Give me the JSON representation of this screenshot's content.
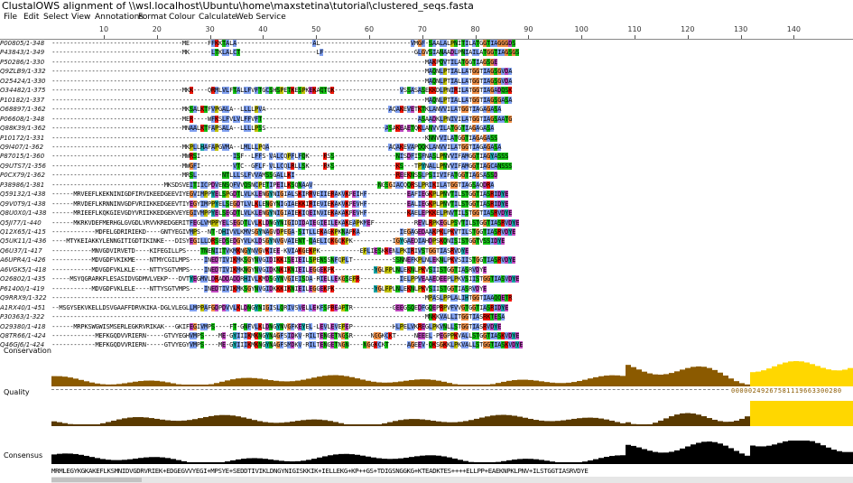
{
  "window_title": "ClustalOWS alignment of \\\\wsl.localhost\\Ubuntu\\home\\maxstetina\\tutorial\\clustered_seqs.fasta",
  "menu": [
    "File",
    "Edit",
    "Select",
    "View",
    "Annotations",
    "Format",
    "Colour",
    "Calculate",
    "Web Service"
  ],
  "ruler": [
    "10",
    "20",
    "30",
    "40",
    "50",
    "60",
    "70",
    "80",
    "90",
    "100",
    "110",
    "120",
    "130",
    "140"
  ],
  "rows": [
    {
      "name": "P00805/1-348",
      "seq": "------------------------------------ME-----FFKKTALA---------------------AL-------------------------VMGF-SAALALPNITILATGGTIAGGGDS"
    },
    {
      "name": "P43843/1-349",
      "seq": "------------------------------------MK------LTKLALCT---------------------LF-------------------------GLGVSIANAADLPNIAILATGGTIAGSGS"
    },
    {
      "name": "P50286/1-330",
      "seq": "-------------------------------------------------------------------------------------------------------MAKPQVTILATGGTIAGSGE"
    },
    {
      "name": "Q9ZLB9/1-332",
      "seq": "-------------------------------------------------------------------------------------------------------MAQNLPTIALLATGGTIAGSGVDA"
    },
    {
      "name": "O25424/1-330",
      "seq": "-------------------------------------------------------------------------------------------------------MAQNLPTIALLATGGTIAGSGVDA"
    },
    {
      "name": "O34482/1-375",
      "seq": "------------------------------------MKK----QRMLVLFTALLFVFTGCSHSPETKESPKEKAQTQK------------------VSSASASEKKDLPNIRILATGGTIAGADQSK"
    },
    {
      "name": "P10182/1-337",
      "seq": "-------------------------------------------------------------------------------------------------------MAQNLPTIALLATGGTIAGSGASA"
    },
    {
      "name": "O68897/1-362",
      "seq": "------------------------------------MKSALKTFVPGALA--LLLLPVA----------------------------------AQAKEVETKTKLANVVILATGGTIAGAGASA"
    },
    {
      "name": "P06608/1-348",
      "seq": "------------------------------------MER----WFKSLFVLVLFFVFT-------------------------------------------ASAADKLPNIVILATGGTIAGSAATG"
    },
    {
      "name": "Q88K39/1-362",
      "seq": "------------------------------------MNAALKTFAPSALA--LLLLPSS---------------------------------ASAKEAETQKLANVVILATGGTIAGAGASA"
    },
    {
      "name": "P10172/1-331",
      "seq": "-------------------------------------------------------------------------------------------------------KNNVVILATGGTIAGAGASS"
    },
    {
      "name": "Q9I407/1-362",
      "seq": "------------------------------------MKPLLHAFAPGVMA--LMLLLPQA---------------------------------AQAKEVAPQQKLANVVILATGGTIAGAGASA"
    },
    {
      "name": "P87015/1-360",
      "seq": "------------------------------------MWRSI---------ISF--LFFS-VALCQPFLFQK----RSS-----------------NISDFISFNASLPNVVIFAMGGTIAGYASSS"
    },
    {
      "name": "Q9UTS7/1-356",
      "seq": "------------------------------------MWGFI---------VTC--GFLF-VLLCQLRLLSK----RKS-----------------KS---TPYNALLPNVVIFAMGGTIAGCANSSS"
    },
    {
      "name": "P0CX79/1-362",
      "seq": "------------------------------------MRSL-------NTLLLSLFVVAMSSGALLKI----------------------------REEKNSSLPSIIVIFATGGTIAGSASSD"
    },
    {
      "name": "P38986/1-381",
      "seq": "-------------------------------MKSDSVEITIICPDVENSQFVVQSNCPETIPEILKSQNAAV------------------NGSGIACQQRSLPRIKILATGGTIAGSAQDRA"
    },
    {
      "name": "Q59132/1-438",
      "seq": "------MRVEEFLKEKNINIGDFIRVIKEEDGEEVIYEGVIMPPYELSPGDTLVLKLENGYNIGIALSKIRRVEIIERAKVKPEIHF-----------EAFIEGKPLPNVTILSTGGTIASRIDYE"
    },
    {
      "name": "Q9V0T9/1-438",
      "seq": "------MRVDEFLKRNNINVGDFVRIIKKEDGEEVTIYEGYIMPPYELSEGDTLVLKLENGYNIGIAEKKIRIEVIEKAKVKPEVHF-----------EALIEGKPLPNVTILSTGGTIASRIDYE"
    },
    {
      "name": "Q8U0X0/1-438",
      "seq": "------MRIEEFLKQKGIEVGDYVRIIKKEDGEKVEYEGIVMPPYELSEGDTLVLKLENGYNIGIAIEKIQEINVIEKAKAKPEVHF-----------KAELEPKKELPNVTILSTGGTIASRVDYE"
    },
    {
      "name": "Q5JI77/1-440",
      "seq": "------MKRKVDEFMERHGLGVGDLVRVVKREDGERITFEGLVMPPYELSEGDTLVLKLDNGYNIGIDIDAIEGIEILEKAKEAPKMEF-----------REVLRPKEGLPSVTILSTGGTIASRVDYE"
    },
    {
      "name": "Q12X65/1-415",
      "seq": "------------MDFELGDRIRIEKD----GNTYEGIVMPS--NT-DHIVVLKMVSGYNAGVDPEGA-SITLLEKAGKPKNAPKA-----------IEGAGEDAAKPKLPKVTILSTGGTIASRVDYE"
    },
    {
      "name": "Q5UK11/1-436",
      "seq": "----MTYKEIAKKYLENNGITIGDTIKINKE---DISYEGILLDRSEDSEDGYVLKLDSGYNVGVAIENT-QAELIQKGQKPK-----------IGYGAEDIAHDPSKQNISISTGGTVSSIDYE"
    },
    {
      "name": "Q6U37/1-417",
      "seq": "-----------MNVGDVIRVETD----KIFEGILLPS----TNENIITVKMKNGYNVGVKIEE-KVIAKGEKPK-----------EPLIESKKENLPKIRIVSTGGTIASRVDYE"
    },
    {
      "name": "A6UPR4/1-426",
      "seq": "-----------MDVGDFVKIKME----NTMYCGILMPS----INEDTIVIKMKSGYNVGIDIKKISEIEILSPENSSNFQPLT-----------SSNNEFKPLNLEKNLPKVSIISTGGTIASRVDYE"
    },
    {
      "name": "A6VGK5/1-418",
      "seq": "-----------MDVGDFVKLKLE----NTTYSGTVMPS----INEDTIVIKMKNGYNVGIDKNKIKNIEILEGGEKPK-----------YGLPPLNLEKNLPKVSIISTGGTIASRVDYE"
    },
    {
      "name": "O26802/1-435",
      "seq": "-----MSYQGRARKFLESASIDVGDMVLVEKP---DVTYEGMVLDRADDADDRHIVLKMDSGYNVGIEISDA-RIELLEKGSEPR-----------IELPPVEAAEDEEPLPKVSIISTGGTIASVDYE"
    },
    {
      "name": "P61400/1-419",
      "seq": "-----------MDVGDFVKLELE----NTTYSGTVMPS----INEDTIVIKMKSGYNVGIDKKKIKNIEILEGGEKPK-----------YGLPPLNLEKNLPKVSIISTGGTIASRVDYE"
    },
    {
      "name": "Q9RRX9/1-322",
      "seq": "-------------------------------------------------------------------------------------------------------MPASLPPLALIHTGGTIAAQQETR"
    },
    {
      "name": "A1RX40/1-451",
      "seq": "--MSGYSEKVKELLDSVGAAFFDRVKIKA-DGLVLEGLLMPPAFGDPDVVLKLDNGYNIGISLQRIVSVELLEKFSPREAPTR-----------GEEGSQEDFGQEPRPVFVVGTGGTIASRIDYE"
    },
    {
      "name": "P30363/1-322",
      "seq": "-------------------------------------------------------------------------------------------------------MNKKVALLITGGTIASRKTESA"
    },
    {
      "name": "O29380/1-418",
      "seq": "------MRPKSWGWISMSERLEGKRVRIKAK---GKIFEGIVMPS----FT-GNFVLKLDNGYNVGFKEYEL-LEVLEVEPEP-----------HLPELVKREGLPKVNLLSTGGTIASRVDYE"
    },
    {
      "name": "Q8TR66/1-424",
      "seq": "------------MEFKGQDVVRIERN-----GTVYEGHVMPS----ME-GYIIIKMKNGYNAGFSIDKV-RILTENGETNGSR-----NGGKCKT-----NEEEL-PEGPPKVALLSTGGTIASKVDYE"
    },
    {
      "name": "Q46GJ6/1-424",
      "seq": "------------MEFKGQDVVRIERN-----GTVYEGYVMPS----ME-GYIIIKMKNGYNAGFSMDKV-RILTENGETNGN----NGGKCKT-----AGEEV-QKSGKKLPKVALLSTGGTIASKVDYE"
    }
  ],
  "conservation_label": "Conservation",
  "conservation_scores": "00000249267581119663300280",
  "quality_label": "Quality",
  "consensus_label": "Consensus",
  "consensus_seq": "MRMLEGYKGKAKEFLKSMNIDVGDRVRIEK+EDGEGVVYEGI+MPSYE+SEDDTIVIKLDNGYNIGISKKIK+IELLEKG+KP++GS+TDIGSNGGKG+KTEADKTES++++ELLPP+EAEKNPKLPNV+ILSTGGTIASRVDYE",
  "colors": {
    "blue": "#80a0f0",
    "orange": "#f09048",
    "green": "#15c015",
    "yellow": "#c0c000",
    "cyan": "#15a4a4",
    "magenta": "#c048c0",
    "red": "#f01505",
    "conservation_bar": "#8b5a00",
    "quality_bar": "#5a3a00",
    "highlight": "#ffd700"
  }
}
